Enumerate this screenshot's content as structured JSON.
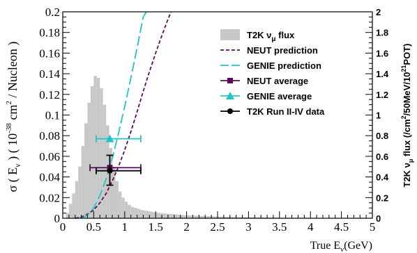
{
  "chart_data": {
    "type": "line",
    "xlabel": {
      "main": "True E",
      "sub": "ν",
      "unit": "(GeV)"
    },
    "ylabel": {
      "p1": "σ ( E",
      "sub": "ν",
      "p2": " ) ( 10",
      "sup": "-38",
      "p3": " cm",
      "sup2": "2",
      "p4": " / Nucleon )"
    },
    "y2label": {
      "p1": "T2K ν",
      "sub": "μ",
      "p2": " flux (/cm",
      "sup": "2",
      "p3": "/50MeV/10",
      "sup2": "21",
      "p4": "POT)"
    },
    "xlim": [
      0,
      5
    ],
    "ylim": [
      0,
      0.2
    ],
    "y2lim": [
      0,
      2
    ],
    "x_ticks": [
      0,
      0.5,
      1,
      1.5,
      2,
      2.5,
      3,
      3.5,
      4,
      4.5,
      5
    ],
    "x_tick_labels": [
      "0",
      "0.5",
      "1",
      "1.5",
      "2",
      "2.5",
      "3",
      "3.5",
      "4",
      "4.5",
      "5"
    ],
    "y_ticks": [
      0,
      0.02,
      0.04,
      0.06,
      0.08,
      0.1,
      0.12,
      0.14,
      0.16,
      0.18,
      0.2
    ],
    "y_tick_labels": [
      "0",
      "0.02",
      "0.04",
      "0.06",
      "0.08",
      "0.1",
      "0.12",
      "0.14",
      "0.16",
      "0.18",
      "0.2"
    ],
    "y2_ticks": [
      0,
      0.2,
      0.4,
      0.6,
      0.8,
      1,
      1.2,
      1.4,
      1.6,
      1.8,
      2
    ],
    "y2_tick_labels": [
      "0",
      "0.2",
      "0.4",
      "0.6",
      "0.8",
      "1",
      "1.2",
      "1.4",
      "1.6",
      "1.8",
      "2"
    ],
    "grid": false,
    "legend_position": "top-right",
    "legend": [
      {
        "label": "T2K ν",
        "sub": "μ",
        "label2": " flux",
        "kind": "flux-box",
        "color": "#c8c8c8"
      },
      {
        "label": "NEUT prediction",
        "kind": "dotted-line",
        "color": "#5a0a5a"
      },
      {
        "label": "GENIE prediction",
        "kind": "dashed-line",
        "color": "#22c4c4"
      },
      {
        "label": "NEUT average",
        "kind": "square-marker",
        "color": "#5a0a5a"
      },
      {
        "label": "GENIE average",
        "kind": "triangle-marker",
        "color": "#22c4c4"
      },
      {
        "label": "T2K Run II-IV data",
        "kind": "circle-marker",
        "color": "#000000"
      }
    ],
    "flux_histogram": {
      "name": "T2K νμ flux",
      "axis": "right",
      "bin_width": 0.05,
      "color": "#c8c8c8",
      "bin_lows": [
        0.05,
        0.1,
        0.15,
        0.2,
        0.25,
        0.3,
        0.35,
        0.4,
        0.45,
        0.5,
        0.55,
        0.6,
        0.65,
        0.7,
        0.75,
        0.8,
        0.85,
        0.9,
        0.95,
        1.0,
        1.05,
        1.1,
        1.15,
        1.2,
        1.25,
        1.3,
        1.35,
        1.4,
        1.45,
        1.5,
        1.55,
        1.6,
        1.65,
        1.7,
        1.75,
        1.8,
        1.85,
        1.9,
        1.95,
        2.0,
        2.1,
        2.2,
        2.3,
        2.4,
        2.5,
        2.6,
        2.7,
        2.8,
        2.9,
        3.0,
        3.25,
        3.5,
        3.75,
        4.0,
        4.5
      ],
      "values": [
        0.05,
        0.14,
        0.24,
        0.36,
        0.5,
        0.7,
        0.92,
        1.12,
        1.28,
        1.38,
        1.36,
        1.26,
        1.1,
        0.9,
        0.68,
        0.5,
        0.36,
        0.26,
        0.2,
        0.16,
        0.13,
        0.11,
        0.1,
        0.09,
        0.08,
        0.075,
        0.07,
        0.065,
        0.06,
        0.055,
        0.05,
        0.048,
        0.045,
        0.042,
        0.04,
        0.037,
        0.035,
        0.032,
        0.03,
        0.028,
        0.025,
        0.022,
        0.02,
        0.018,
        0.016,
        0.014,
        0.012,
        0.011,
        0.01,
        0.009,
        0.007,
        0.005,
        0.004,
        0.003,
        0.002
      ]
    },
    "series": [
      {
        "name": "NEUT prediction",
        "style": "dotted",
        "color": "#5a0a5a",
        "x": [
          0.2,
          0.3,
          0.4,
          0.5,
          0.6,
          0.7,
          0.8,
          0.9,
          1.0,
          1.1,
          1.2,
          1.3,
          1.4,
          1.5,
          1.6,
          1.7,
          1.75
        ],
        "y": [
          0.0,
          0.001,
          0.004,
          0.008,
          0.015,
          0.024,
          0.036,
          0.05,
          0.066,
          0.084,
          0.103,
          0.123,
          0.142,
          0.16,
          0.177,
          0.193,
          0.2
        ]
      },
      {
        "name": "GENIE prediction",
        "style": "dashed",
        "color": "#22c4c4",
        "x": [
          0.3,
          0.4,
          0.5,
          0.6,
          0.7,
          0.8,
          0.9,
          1.0,
          1.1,
          1.2,
          1.3,
          1.35
        ],
        "y": [
          0.0,
          0.003,
          0.01,
          0.022,
          0.038,
          0.058,
          0.082,
          0.108,
          0.136,
          0.165,
          0.195,
          0.2
        ]
      }
    ],
    "points": [
      {
        "name": "NEUT average",
        "marker": "square",
        "color": "#5a0a5a",
        "x": 0.76,
        "y": 0.049,
        "xerr": [
          0.44,
          1.26
        ],
        "yerr": 0
      },
      {
        "name": "GENIE average",
        "marker": "triangle",
        "color": "#22c4c4",
        "x": 0.76,
        "y": 0.077,
        "xerr": [
          0.54,
          1.26
        ],
        "yerr": 0
      },
      {
        "name": "T2K Run II-IV data",
        "marker": "circle",
        "color": "#000000",
        "x": 0.76,
        "y": 0.046,
        "xerr": [
          0.54,
          1.26
        ],
        "yerr": [
          0.032,
          0.061
        ]
      }
    ]
  }
}
